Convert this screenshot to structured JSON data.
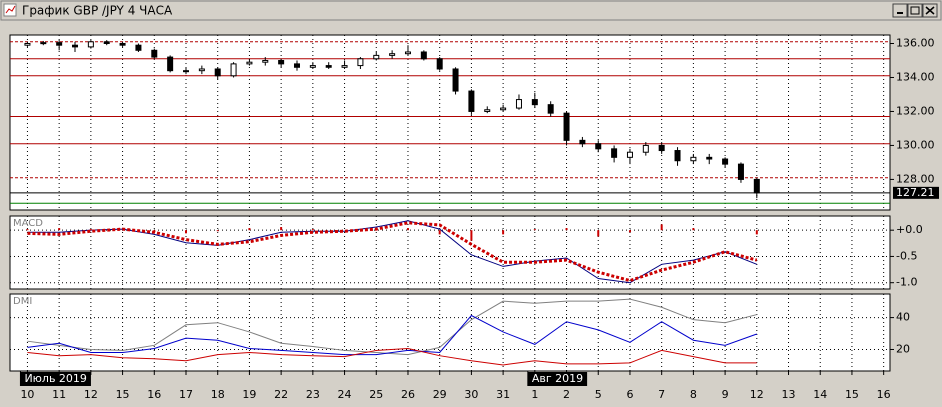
{
  "window": {
    "title": "График GBP /JPY  4 ЧАСА"
  },
  "chart_data": [
    {
      "type": "candlestick",
      "x": [
        0,
        0.5,
        1,
        1.5,
        2,
        2.5,
        3,
        3.5,
        4,
        4.5,
        5,
        5.5,
        6,
        6.5,
        7,
        7.5,
        8,
        8.5,
        9,
        9.5,
        10,
        10.5,
        11,
        11.5,
        12,
        12.5,
        13,
        13.5,
        14,
        14.5,
        15,
        15.5,
        16,
        16.5,
        17,
        17.5,
        18,
        18.5,
        19,
        19.5,
        20,
        20.5,
        21,
        21.5,
        22,
        22.5,
        23
      ],
      "open": [
        135.9,
        136.0,
        136.05,
        135.9,
        135.8,
        136.1,
        136.0,
        135.9,
        135.6,
        135.2,
        134.4,
        134.4,
        134.5,
        134.1,
        134.8,
        134.9,
        135.0,
        134.8,
        134.6,
        134.7,
        134.6,
        134.7,
        135.1,
        135.3,
        135.4,
        135.5,
        135.1,
        134.5,
        133.2,
        132.0,
        132.1,
        132.2,
        132.7,
        132.4,
        131.9,
        130.3,
        130.1,
        129.8,
        129.3,
        129.6,
        130.0,
        129.7,
        129.1,
        129.3,
        129.2,
        128.9,
        128.0
      ],
      "high": [
        136.1,
        136.15,
        136.2,
        136.1,
        136.2,
        136.2,
        136.1,
        136.0,
        135.7,
        135.3,
        134.6,
        134.7,
        134.6,
        134.9,
        135.1,
        135.2,
        135.1,
        135.0,
        134.9,
        134.9,
        135.0,
        135.2,
        135.5,
        135.6,
        135.9,
        135.6,
        135.2,
        134.6,
        133.3,
        132.3,
        132.4,
        133.0,
        133.1,
        132.6,
        132.0,
        130.5,
        130.3,
        130.0,
        129.8,
        130.2,
        130.2,
        129.9,
        129.5,
        129.5,
        129.3,
        129.0,
        128.1
      ],
      "low": [
        135.8,
        135.9,
        135.6,
        135.5,
        135.7,
        135.9,
        135.8,
        135.5,
        135.1,
        134.3,
        134.2,
        134.2,
        133.9,
        134.0,
        134.7,
        134.7,
        134.6,
        134.4,
        134.5,
        134.5,
        134.5,
        134.5,
        135.0,
        135.1,
        135.3,
        135.0,
        134.4,
        133.0,
        131.8,
        131.9,
        132.0,
        132.1,
        132.2,
        131.7,
        130.0,
        129.9,
        129.6,
        129.0,
        128.9,
        129.4,
        129.5,
        128.8,
        128.9,
        128.9,
        128.7,
        127.8,
        126.9
      ],
      "close": [
        136.0,
        136.05,
        135.9,
        135.8,
        136.1,
        136.0,
        135.9,
        135.6,
        135.2,
        134.4,
        134.4,
        134.5,
        134.1,
        134.8,
        134.9,
        135.0,
        134.8,
        134.6,
        134.7,
        134.6,
        134.7,
        135.1,
        135.3,
        135.4,
        135.5,
        135.1,
        134.5,
        133.2,
        132.0,
        132.1,
        132.2,
        132.7,
        132.4,
        131.9,
        130.3,
        130.1,
        129.8,
        129.3,
        129.6,
        130.0,
        129.7,
        129.1,
        129.3,
        129.2,
        128.9,
        128.0,
        127.21
      ],
      "xlim": [
        -0.55,
        27.2
      ],
      "ylim": [
        126.2,
        136.5
      ],
      "yticks": [
        {
          "value": 128,
          "label": "128.00"
        },
        {
          "value": 130,
          "label": "130.00"
        },
        {
          "value": 132,
          "label": "132.00"
        },
        {
          "value": 134,
          "label": "134.00"
        },
        {
          "value": 136,
          "label": "136.00"
        }
      ],
      "levels": [
        {
          "value": 136.1,
          "color": "#b00000",
          "dash": true
        },
        {
          "value": 135.1,
          "color": "#b00000",
          "dash": false
        },
        {
          "value": 134.1,
          "color": "#b00000",
          "dash": false
        },
        {
          "value": 131.7,
          "color": "#b00000",
          "dash": false
        },
        {
          "value": 130.1,
          "color": "#b00000",
          "dash": false
        },
        {
          "value": 128.1,
          "color": "#b00000",
          "dash": true
        },
        {
          "value": 126.6,
          "color": "#008000",
          "dash": false
        }
      ],
      "last_price": 127.21,
      "color_up": "#ffffff",
      "color_down": "#000000"
    },
    {
      "type": "line",
      "title": "MACD",
      "x": [
        0,
        1,
        2,
        3,
        4,
        5,
        6,
        7,
        8,
        9,
        10,
        11,
        12,
        13,
        14,
        15,
        16,
        17,
        18,
        19,
        20,
        21,
        22,
        23
      ],
      "series": [
        {
          "color": "#000080",
          "style": "line",
          "values": [
            -0.04,
            -0.04,
            0.0,
            0.02,
            -0.08,
            -0.24,
            -0.29,
            -0.18,
            -0.04,
            -0.02,
            -0.02,
            0.06,
            0.18,
            0.02,
            -0.47,
            -0.69,
            -0.59,
            -0.53,
            -0.92,
            -1.0,
            -0.65,
            -0.57,
            -0.41,
            -0.65
          ]
        },
        {
          "color": "#cc0000",
          "style": "dotted",
          "values": [
            -0.06,
            -0.08,
            -0.02,
            0.02,
            -0.04,
            -0.18,
            -0.27,
            -0.22,
            -0.1,
            -0.04,
            -0.02,
            0.02,
            0.14,
            0.1,
            -0.27,
            -0.61,
            -0.61,
            -0.57,
            -0.8,
            -0.96,
            -0.76,
            -0.61,
            -0.41,
            -0.57
          ]
        },
        {
          "color": "#cc0000",
          "style": "bar",
          "values": [
            0.02,
            0.04,
            0.02,
            0,
            -0.04,
            -0.06,
            -0.02,
            0.04,
            0.06,
            0.02,
            0,
            0.04,
            0.04,
            -0.08,
            -0.2,
            -0.08,
            0.02,
            0.04,
            -0.12,
            -0.04,
            0.11,
            0.04,
            0,
            -0.08
          ]
        }
      ],
      "xlim": [
        -0.55,
        27.2
      ],
      "ylim": [
        -1.12,
        0.27
      ],
      "yticks": [
        {
          "value": 0,
          "label": "+0.0"
        },
        {
          "value": -0.5,
          "label": "-0.5"
        },
        {
          "value": -1,
          "label": "-1.0"
        }
      ],
      "grid": true
    },
    {
      "type": "line",
      "title": "DMI",
      "x": [
        0,
        1,
        2,
        3,
        4,
        5,
        6,
        7,
        8,
        9,
        10,
        11,
        12,
        13,
        14,
        15,
        16,
        17,
        18,
        19,
        20,
        21,
        22,
        23
      ],
      "series": [
        {
          "color": "#808080",
          "style": "line",
          "values": [
            25.2,
            22.6,
            20,
            19.4,
            22.6,
            35.5,
            36.8,
            31,
            23.9,
            21.9,
            19.4,
            18.1,
            16.8,
            21.3,
            38.7,
            50.3,
            49,
            50.3,
            50.3,
            51.6,
            46.5,
            38.7,
            36.8,
            41.9
          ]
        },
        {
          "color": "#0000cc",
          "style": "line",
          "values": [
            21.3,
            23.9,
            18.1,
            18.1,
            20.6,
            27.1,
            25.8,
            20.6,
            19.4,
            18.1,
            16.8,
            16.8,
            19.4,
            18.1,
            41.3,
            31,
            23.2,
            37.4,
            32.3,
            24.5,
            37.4,
            25.8,
            22.6,
            29.7
          ]
        },
        {
          "color": "#cc0000",
          "style": "line",
          "values": [
            18.1,
            16.1,
            16.8,
            14.8,
            14.2,
            12.9,
            16.8,
            18.1,
            16.8,
            16.1,
            15.5,
            19.4,
            20.6,
            16.1,
            12.9,
            10.3,
            12.9,
            11,
            11,
            11.6,
            19.4,
            15.5,
            11.6,
            11.6
          ]
        }
      ],
      "xlim": [
        -0.55,
        27.2
      ],
      "ylim": [
        6.5,
        54.8
      ],
      "yticks": [
        20,
        40
      ],
      "grid": true,
      "xticks": [
        {
          "value": 0,
          "label": "10"
        },
        {
          "value": 1,
          "label": "11"
        },
        {
          "value": 2,
          "label": "12"
        },
        {
          "value": 3,
          "label": "15"
        },
        {
          "value": 4,
          "label": "16"
        },
        {
          "value": 5,
          "label": "17"
        },
        {
          "value": 6,
          "label": "18"
        },
        {
          "value": 7,
          "label": "19"
        },
        {
          "value": 8,
          "label": "22"
        },
        {
          "value": 9,
          "label": "23"
        },
        {
          "value": 10,
          "label": "24"
        },
        {
          "value": 11,
          "label": "25"
        },
        {
          "value": 12,
          "label": "26"
        },
        {
          "value": 13,
          "label": "29"
        },
        {
          "value": 14,
          "label": "30"
        },
        {
          "value": 15,
          "label": "31"
        },
        {
          "value": 16,
          "label": "1"
        },
        {
          "value": 17,
          "label": "2"
        },
        {
          "value": 18,
          "label": "5"
        },
        {
          "value": 19,
          "label": "6"
        },
        {
          "value": 20,
          "label": "7"
        },
        {
          "value": 21,
          "label": "8"
        },
        {
          "value": 22,
          "label": "9"
        },
        {
          "value": 23,
          "label": "12"
        },
        {
          "value": 24,
          "label": "13"
        },
        {
          "value": 25,
          "label": "14"
        },
        {
          "value": 26,
          "label": "15"
        },
        {
          "value": 27,
          "label": "16"
        }
      ],
      "months": [
        {
          "value": 0,
          "label": "Июль 2019"
        },
        {
          "value": 16,
          "label": "Авг 2019"
        }
      ]
    }
  ]
}
